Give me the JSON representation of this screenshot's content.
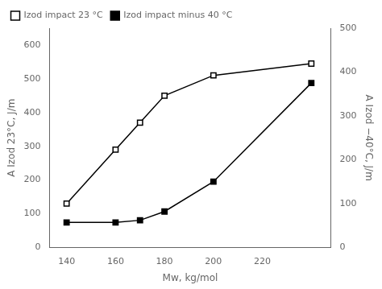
{
  "chart_data": {
    "type": "line",
    "x_label": "Mw, kg/mol",
    "y_label": "A Izod 23°C, J/m",
    "y2_label": "A Izod −40°C, J/m",
    "x": [
      140,
      160,
      170,
      180,
      200,
      240
    ],
    "series": [
      {
        "name": "Izod impact 23 °C",
        "color": "#000000",
        "marker": "square-open",
        "values": [
          130,
          290,
          370,
          450,
          510,
          545
        ]
      },
      {
        "name": "Izod impact minus 40 °C",
        "color": "#000000",
        "marker": "square",
        "axis": "y2",
        "values": [
          57,
          57,
          62,
          82,
          150,
          375
        ]
      }
    ],
    "xlim": [
      133,
      248
    ],
    "xticks": [
      140,
      160,
      180,
      200,
      220
    ],
    "ylim": [
      0,
      650
    ],
    "yticks": [
      0,
      100,
      200,
      300,
      400,
      500,
      600
    ],
    "y2lim": [
      0,
      500
    ],
    "y2ticks": [
      0,
      100,
      200,
      300,
      400,
      500
    ],
    "grid": false,
    "legend": "upper left"
  }
}
